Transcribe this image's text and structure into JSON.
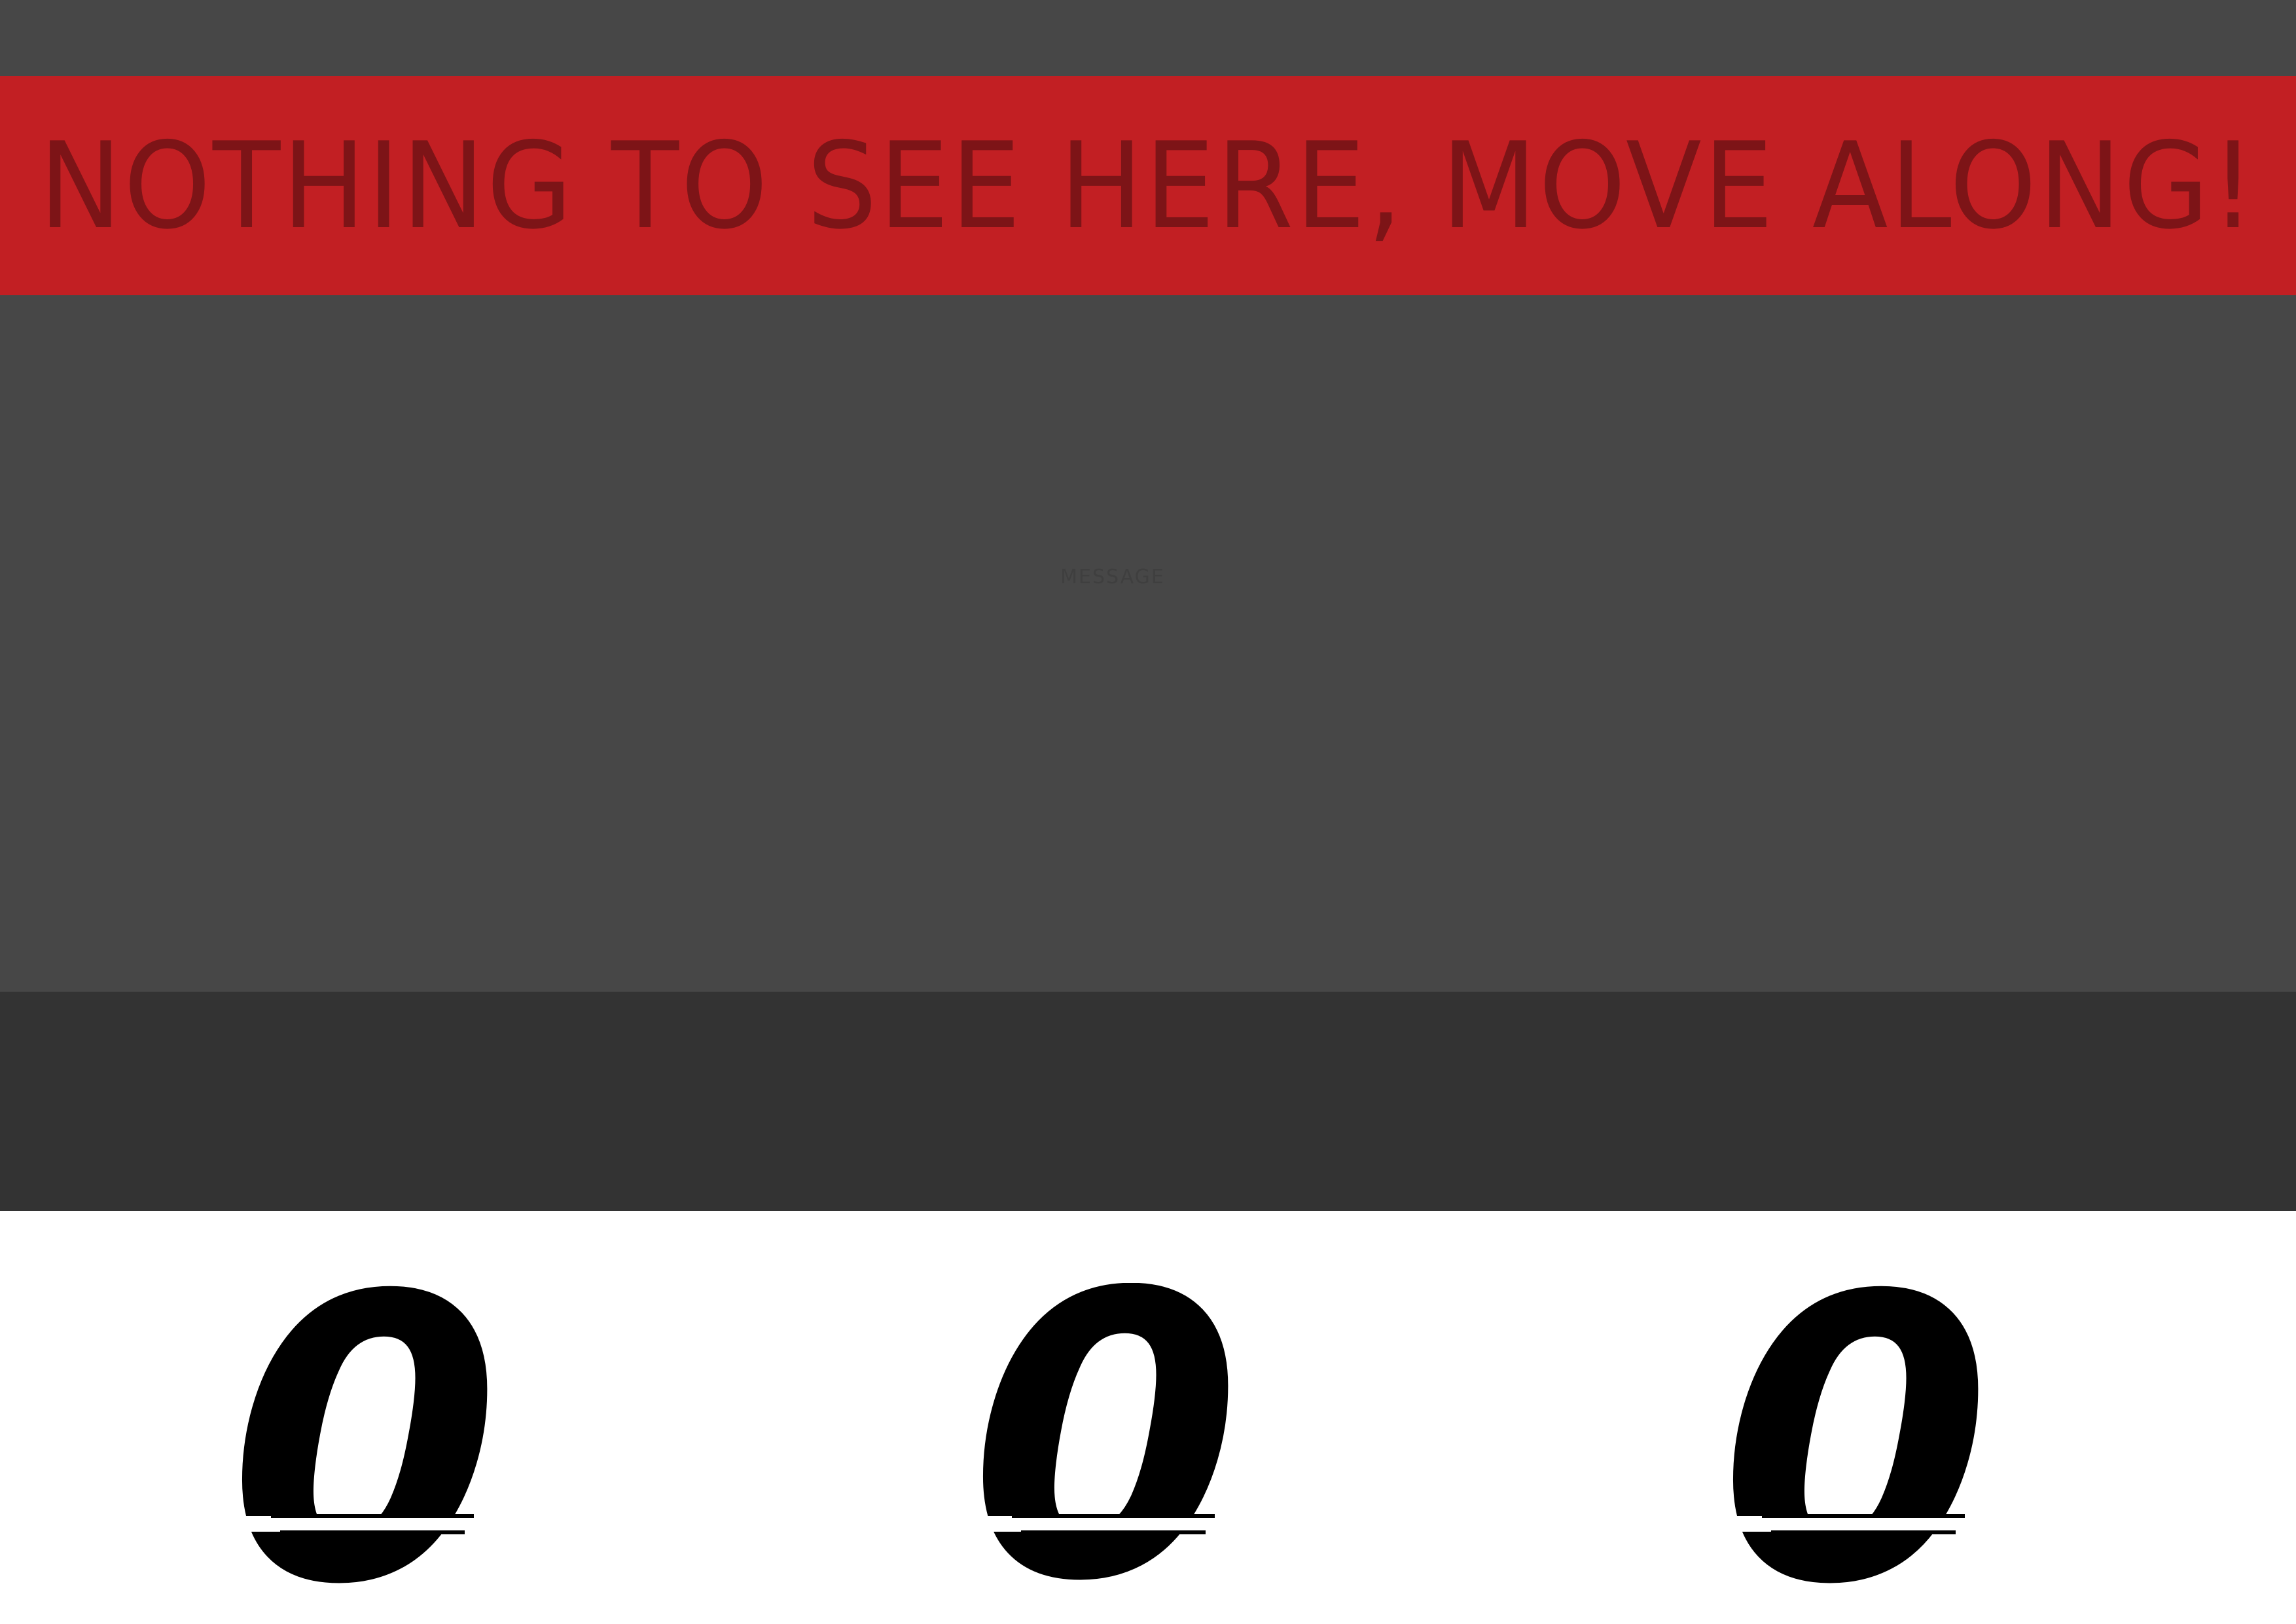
{
  "banner": {
    "message": "NOTHING TO SEE HERE, MOVE ALONG!"
  },
  "content": {
    "caption": "MESSAGE"
  },
  "counters": [
    {
      "value": "0"
    },
    {
      "value": "0"
    },
    {
      "value": "0"
    }
  ],
  "colors": {
    "banner_background": "#c21f23",
    "banner_text": "#7d1417",
    "panel_background": "#474747",
    "footer_band": "#333333"
  }
}
